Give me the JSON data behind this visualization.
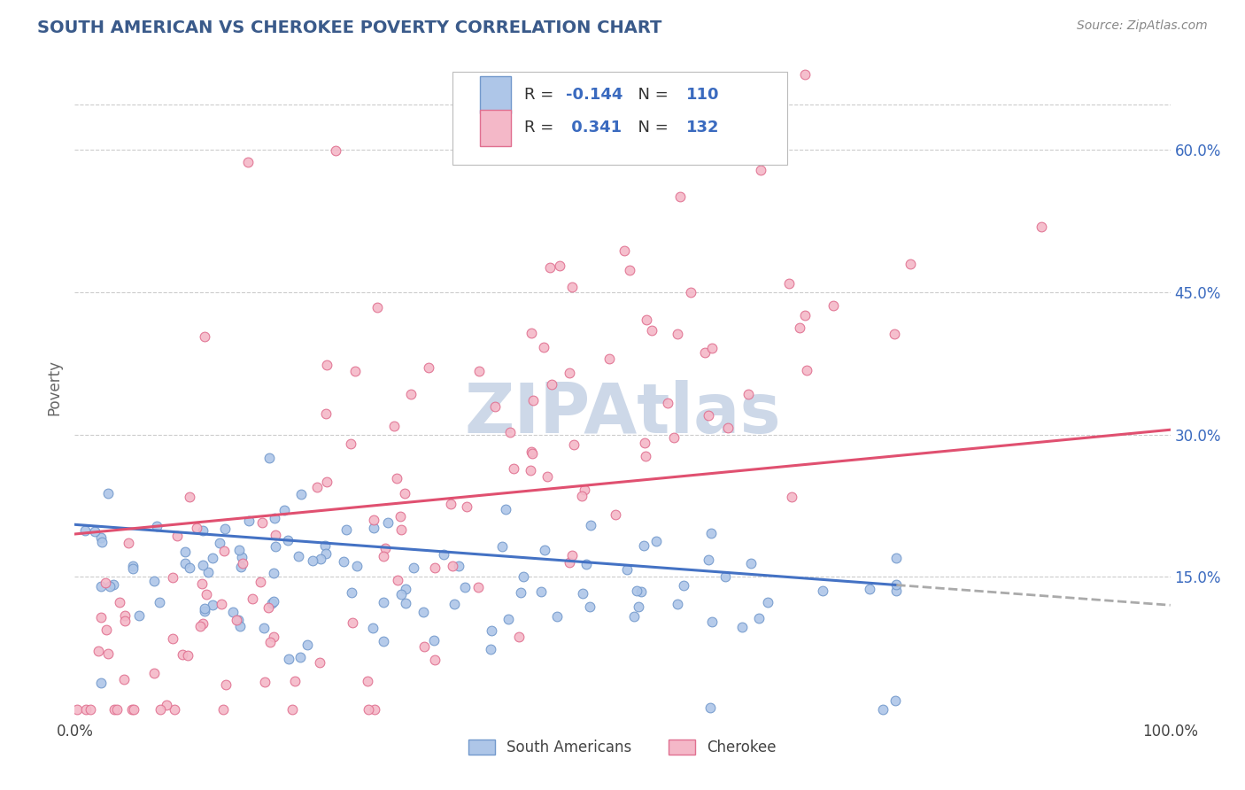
{
  "title": "SOUTH AMERICAN VS CHEROKEE POVERTY CORRELATION CHART",
  "source": "Source: ZipAtlas.com",
  "ylabel": "Poverty",
  "xlim": [
    0.0,
    1.0
  ],
  "ylim": [
    0.0,
    0.7
  ],
  "yticks": [
    0.15,
    0.3,
    0.45,
    0.6
  ],
  "ytick_labels": [
    "15.0%",
    "30.0%",
    "45.0%",
    "60.0%"
  ],
  "xticks": [
    0.0,
    1.0
  ],
  "xtick_labels": [
    "0.0%",
    "100.0%"
  ],
  "legend_label_south": "South Americans",
  "legend_label_cherokee": "Cherokee",
  "blue_line_color": "#4472c4",
  "pink_line_color": "#e05070",
  "blue_scatter_face": "#aec6e8",
  "blue_scatter_edge": "#7399cc",
  "pink_scatter_face": "#f4b8c8",
  "pink_scatter_edge": "#e07090",
  "title_color": "#3a5a8a",
  "source_color": "#888888",
  "watermark_color": "#cdd8e8",
  "grid_color": "#cccccc",
  "background_color": "#ffffff",
  "south_R": -0.144,
  "south_N": 110,
  "cherokee_R": 0.341,
  "cherokee_N": 132,
  "blue_line_start_y": 0.205,
  "blue_line_end_x": 0.82,
  "blue_line_end_y": 0.135,
  "pink_line_start_y": 0.195,
  "pink_line_end_y": 0.305
}
